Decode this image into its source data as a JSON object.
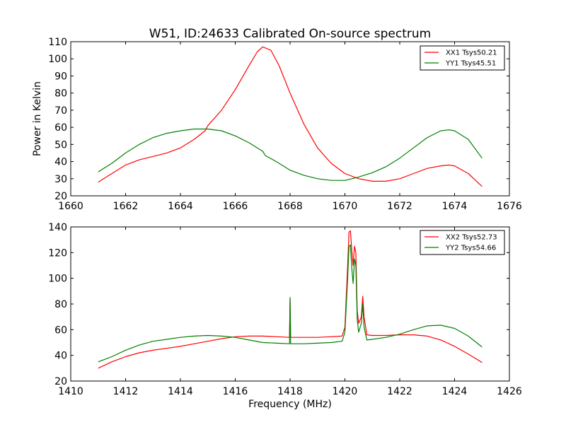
{
  "figure": {
    "title": "W51, ID:24633 Calibrated On-source spectrum"
  },
  "chart_data": [
    {
      "type": "line",
      "title": "W51, ID:24633 Calibrated On-source spectrum",
      "xlabel": "",
      "ylabel": "Power in Kelvin",
      "xlim": [
        1660,
        1676
      ],
      "ylim": [
        20,
        110
      ],
      "xticks": [
        1660,
        1662,
        1664,
        1666,
        1668,
        1670,
        1672,
        1674,
        1676
      ],
      "yticks": [
        20,
        30,
        40,
        50,
        60,
        70,
        80,
        90,
        100,
        110
      ],
      "grid": false,
      "legend_position": "top-right",
      "series": [
        {
          "name": "XX1 Tsys50.21",
          "color": "#ff0000",
          "x": [
            1661.0,
            1661.5,
            1662.0,
            1662.5,
            1663.0,
            1663.5,
            1664.0,
            1664.5,
            1664.9,
            1665.0,
            1665.5,
            1666.0,
            1666.5,
            1666.8,
            1667.0,
            1667.3,
            1667.6,
            1668.0,
            1668.5,
            1669.0,
            1669.5,
            1670.0,
            1670.5,
            1671.0,
            1671.5,
            1672.0,
            1672.5,
            1673.0,
            1673.5,
            1673.8,
            1674.0,
            1674.5,
            1675.0
          ],
          "y": [
            28,
            33,
            38,
            41,
            43,
            45,
            48,
            53,
            58,
            61,
            70,
            82,
            96,
            104,
            107,
            105,
            96,
            80,
            62,
            48,
            39,
            33,
            30,
            28.5,
            28.5,
            30,
            33,
            36,
            37.5,
            38,
            37.5,
            33,
            25.5
          ]
        },
        {
          "name": "YY1 Tsys45.51",
          "color": "#008000",
          "x": [
            1661.0,
            1661.5,
            1662.0,
            1662.5,
            1663.0,
            1663.5,
            1664.0,
            1664.5,
            1665.0,
            1665.5,
            1666.0,
            1666.5,
            1667.0,
            1667.1,
            1667.5,
            1668.0,
            1668.5,
            1669.0,
            1669.5,
            1670.0,
            1670.5,
            1671.0,
            1671.5,
            1672.0,
            1672.5,
            1673.0,
            1673.5,
            1673.8,
            1674.0,
            1674.5,
            1675.0
          ],
          "y": [
            34,
            39,
            45,
            50,
            54,
            56.5,
            58,
            59,
            59,
            58,
            55,
            51,
            46,
            43.5,
            40,
            35,
            32,
            30,
            29,
            29,
            31,
            33.5,
            37,
            42,
            48,
            54,
            58,
            58.5,
            58,
            53,
            42
          ]
        }
      ]
    },
    {
      "type": "line",
      "title": "",
      "xlabel": "Frequency (MHz)",
      "ylabel": "",
      "xlim": [
        1410,
        1426
      ],
      "ylim": [
        20,
        140
      ],
      "xticks": [
        1410,
        1412,
        1414,
        1416,
        1418,
        1420,
        1422,
        1424,
        1426
      ],
      "yticks": [
        20,
        40,
        60,
        80,
        100,
        120,
        140
      ],
      "grid": false,
      "legend_position": "top-right",
      "series": [
        {
          "name": "XX2 Tsys52.73",
          "color": "#ff0000",
          "x": [
            1411.0,
            1411.5,
            1412.0,
            1412.5,
            1413.0,
            1413.5,
            1414.0,
            1414.5,
            1415.0,
            1415.5,
            1416.0,
            1416.5,
            1417.0,
            1417.5,
            1417.98,
            1418.0,
            1418.02,
            1418.5,
            1419.0,
            1419.5,
            1419.9,
            1420.0,
            1420.1,
            1420.15,
            1420.2,
            1420.25,
            1420.3,
            1420.35,
            1420.4,
            1420.45,
            1420.5,
            1420.6,
            1420.65,
            1420.7,
            1420.8,
            1421.0,
            1421.5,
            1422.0,
            1422.5,
            1423.0,
            1423.5,
            1424.0,
            1424.5,
            1425.0
          ],
          "y": [
            30,
            35,
            39,
            42,
            44,
            45.5,
            47,
            49,
            51,
            53,
            54.5,
            55,
            55,
            54.5,
            54,
            84,
            54,
            54,
            54,
            54.5,
            55,
            62,
            110,
            136,
            137,
            122,
            110,
            125,
            120,
            75,
            65,
            70,
            86,
            70,
            56,
            55.5,
            55.5,
            56,
            56,
            55,
            52,
            47,
            41,
            34.5
          ]
        },
        {
          "name": "YY2 Tsys54.66",
          "color": "#008000",
          "x": [
            1411.0,
            1411.5,
            1412.0,
            1412.5,
            1413.0,
            1413.5,
            1414.0,
            1414.5,
            1415.0,
            1415.5,
            1416.0,
            1416.5,
            1417.0,
            1417.5,
            1417.98,
            1418.0,
            1418.02,
            1418.5,
            1419.0,
            1419.5,
            1419.9,
            1420.0,
            1420.1,
            1420.15,
            1420.2,
            1420.25,
            1420.3,
            1420.35,
            1420.4,
            1420.45,
            1420.5,
            1420.6,
            1420.65,
            1420.7,
            1420.8,
            1421.0,
            1421.5,
            1422.0,
            1422.5,
            1423.0,
            1423.5,
            1424.0,
            1424.5,
            1425.0
          ],
          "y": [
            35,
            39,
            44,
            48,
            51,
            52.5,
            54,
            55,
            55.5,
            55,
            54,
            52,
            50,
            49.5,
            49,
            85,
            49,
            49,
            49.5,
            50,
            51,
            58,
            100,
            125,
            126,
            108,
            96,
            115,
            110,
            68,
            58,
            65,
            80,
            62,
            52,
            52.5,
            54,
            56.5,
            60,
            63,
            63.5,
            61,
            55,
            46.5
          ]
        }
      ]
    }
  ]
}
